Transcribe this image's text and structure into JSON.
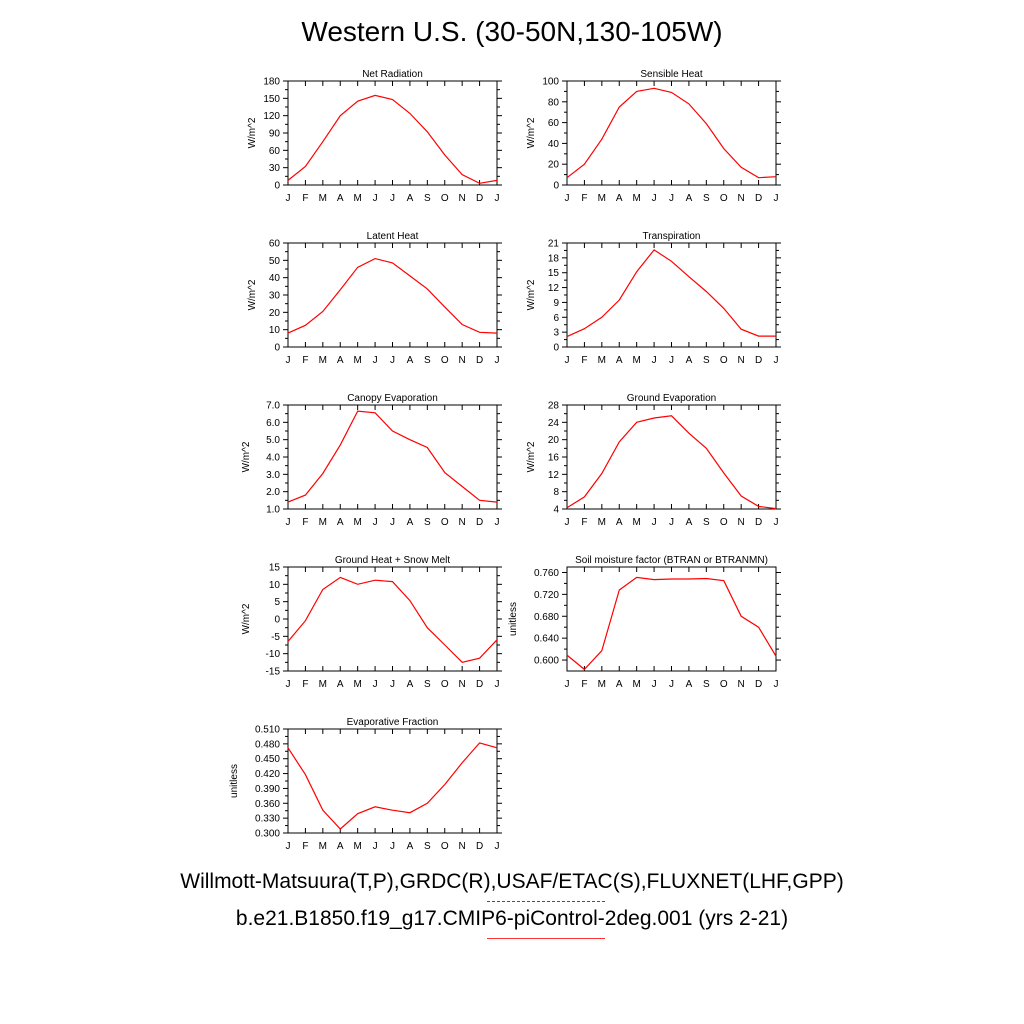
{
  "title": "Western U.S. (30-50N,130-105W)",
  "legend": {
    "obs_label": "Willmott-Matsuura(T,P),GRDC(R),USAF/ETAC(S),FLUXNET(LHF,GPP)",
    "obs_color": "#3b3bff",
    "case_label": "b.e21.B1850.f19_g17.CMIP6-piControl-2deg.001 (yrs 2-21)",
    "case_color": "#ff0000"
  },
  "chart_data": [
    {
      "type": "line",
      "title": "Net Radiation",
      "xlabel": "",
      "ylabel": "W/m^2",
      "x": [
        "J",
        "F",
        "M",
        "A",
        "M",
        "J",
        "J",
        "A",
        "S",
        "O",
        "N",
        "D",
        "J"
      ],
      "ylim": [
        0,
        180
      ],
      "yticks": [
        "0",
        "30",
        "60",
        "90",
        "120",
        "150",
        "180"
      ],
      "series": [
        {
          "color": "#ff0000",
          "values": [
            8,
            32,
            75,
            120,
            145,
            155,
            148,
            124,
            92,
            52,
            18,
            3,
            8
          ]
        }
      ]
    },
    {
      "type": "line",
      "title": "Sensible Heat",
      "xlabel": "",
      "ylabel": "W/m^2",
      "x": [
        "J",
        "F",
        "M",
        "A",
        "M",
        "J",
        "J",
        "A",
        "S",
        "O",
        "N",
        "D",
        "J"
      ],
      "ylim": [
        0,
        100
      ],
      "yticks": [
        "0",
        "20",
        "40",
        "60",
        "80",
        "100"
      ],
      "series": [
        {
          "color": "#ff0000",
          "values": [
            7,
            20,
            44,
            75,
            90,
            93,
            89,
            78,
            59,
            35,
            17,
            7,
            8
          ]
        }
      ]
    },
    {
      "type": "line",
      "title": "Latent Heat",
      "xlabel": "",
      "ylabel": "W/m^2",
      "x": [
        "J",
        "F",
        "M",
        "A",
        "M",
        "J",
        "J",
        "A",
        "S",
        "O",
        "N",
        "D",
        "J"
      ],
      "ylim": [
        0,
        60
      ],
      "yticks": [
        "0",
        "10",
        "20",
        "30",
        "40",
        "50",
        "60"
      ],
      "series": [
        {
          "color": "#ff0000",
          "values": [
            8,
            12.5,
            20.5,
            33,
            46,
            51,
            48.5,
            41,
            33.5,
            23,
            13,
            8.5,
            8
          ]
        }
      ]
    },
    {
      "type": "line",
      "title": "Transpiration",
      "xlabel": "",
      "ylabel": "W/m^2",
      "x": [
        "J",
        "F",
        "M",
        "A",
        "M",
        "J",
        "J",
        "A",
        "S",
        "O",
        "N",
        "D",
        "J"
      ],
      "ylim": [
        0,
        21
      ],
      "yticks": [
        "0",
        "3",
        "6",
        "9",
        "12",
        "15",
        "18",
        "21"
      ],
      "series": [
        {
          "color": "#ff0000",
          "values": [
            2.1,
            3.7,
            6,
            9.5,
            15.2,
            19.6,
            17.3,
            14.2,
            11.2,
            7.8,
            3.6,
            2.2,
            2.2
          ]
        }
      ]
    },
    {
      "type": "line",
      "title": "Canopy Evaporation",
      "xlabel": "",
      "ylabel": "W/m^2",
      "x": [
        "J",
        "F",
        "M",
        "A",
        "M",
        "J",
        "J",
        "A",
        "S",
        "O",
        "N",
        "D",
        "J"
      ],
      "ylim": [
        1.0,
        7.0
      ],
      "yticks": [
        "1.0",
        "2.0",
        "3.0",
        "4.0",
        "5.0",
        "6.0",
        "7.0"
      ],
      "series": [
        {
          "color": "#ff0000",
          "values": [
            1.4,
            1.8,
            3.05,
            4.7,
            6.65,
            6.55,
            5.5,
            5.0,
            4.55,
            3.1,
            2.3,
            1.5,
            1.4
          ]
        }
      ]
    },
    {
      "type": "line",
      "title": "Ground Evaporation",
      "xlabel": "",
      "ylabel": "W/m^2",
      "x": [
        "J",
        "F",
        "M",
        "A",
        "M",
        "J",
        "J",
        "A",
        "S",
        "O",
        "N",
        "D",
        "J"
      ],
      "ylim": [
        4,
        28
      ],
      "yticks": [
        "4",
        "8",
        "12",
        "16",
        "20",
        "24",
        "28"
      ],
      "series": [
        {
          "color": "#ff0000",
          "values": [
            4.3,
            6.8,
            12.2,
            19.5,
            24,
            25,
            25.5,
            21.5,
            18,
            12.3,
            7,
            4.6,
            4.1
          ]
        }
      ]
    },
    {
      "type": "line",
      "title": "Ground Heat + Snow Melt",
      "xlabel": "",
      "ylabel": "W/m^2",
      "x": [
        "J",
        "F",
        "M",
        "A",
        "M",
        "J",
        "J",
        "A",
        "S",
        "O",
        "N",
        "D",
        "J"
      ],
      "ylim": [
        -15,
        15
      ],
      "yticks": [
        "-15",
        "-10",
        "-5",
        "0",
        "5",
        "10",
        "15"
      ],
      "series": [
        {
          "color": "#ff0000",
          "values": [
            -6.5,
            -0.5,
            8.5,
            12,
            10,
            11.2,
            10.8,
            5.3,
            -2.5,
            -7.5,
            -12.5,
            -11.3,
            -6
          ]
        }
      ]
    },
    {
      "type": "line",
      "title": "Soil moisture factor (BTRAN or BTRANMN)",
      "xlabel": "",
      "ylabel": "unitless",
      "x": [
        "J",
        "F",
        "M",
        "A",
        "M",
        "J",
        "J",
        "A",
        "S",
        "O",
        "N",
        "D",
        "J"
      ],
      "ylim": [
        0.58,
        0.77
      ],
      "yticks": [
        "0.600",
        "0.640",
        "0.680",
        "0.720",
        "0.760"
      ],
      "ytick_values": [
        0.6,
        0.64,
        0.68,
        0.72,
        0.76
      ],
      "series": [
        {
          "color": "#ff0000",
          "values": [
            0.609,
            0.583,
            0.617,
            0.728,
            0.751,
            0.747,
            0.748,
            0.748,
            0.749,
            0.745,
            0.68,
            0.66,
            0.607
          ]
        }
      ]
    },
    {
      "type": "line",
      "title": "Evaporative Fraction",
      "xlabel": "",
      "ylabel": "unitless",
      "x": [
        "J",
        "F",
        "M",
        "A",
        "M",
        "J",
        "J",
        "A",
        "S",
        "O",
        "N",
        "D",
        "J"
      ],
      "ylim": [
        0.3,
        0.51
      ],
      "yticks": [
        "0.300",
        "0.330",
        "0.360",
        "0.390",
        "0.420",
        "0.450",
        "0.480",
        "0.510"
      ],
      "series": [
        {
          "color": "#ff0000",
          "values": [
            0.472,
            0.418,
            0.346,
            0.308,
            0.339,
            0.353,
            0.346,
            0.341,
            0.36,
            0.398,
            0.442,
            0.482,
            0.472
          ]
        }
      ]
    }
  ]
}
